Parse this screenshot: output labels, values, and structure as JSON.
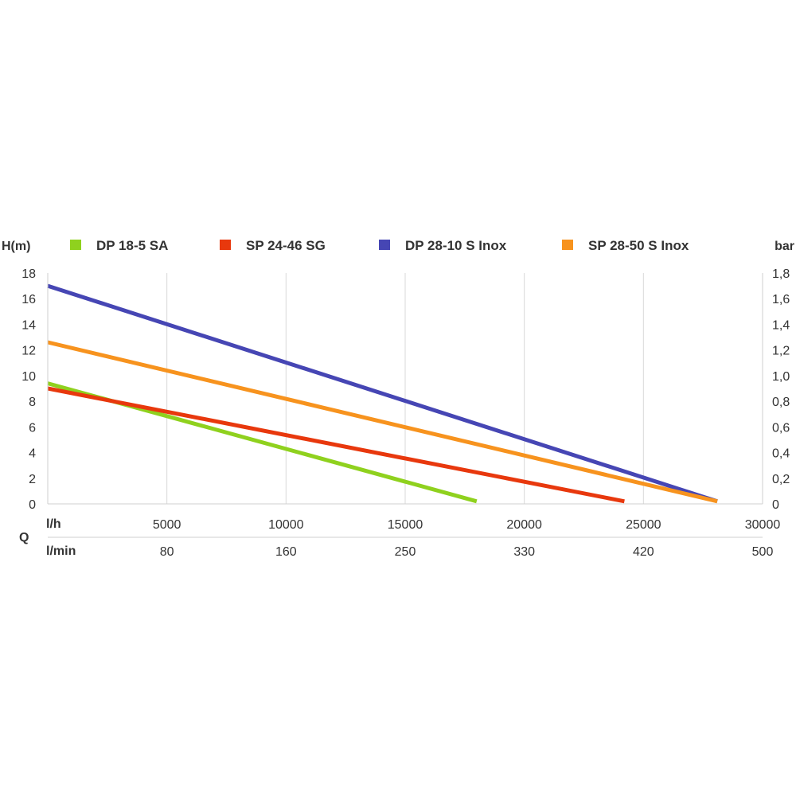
{
  "chart_data": {
    "type": "line",
    "ylabel_left": "H(m)",
    "ylabel_right": "bar",
    "row_label_q": "Q",
    "row_label_lh": "l/h",
    "row_label_lmin": "l/min",
    "x_ticks_lh": [
      "5000",
      "10000",
      "15000",
      "20000",
      "25000",
      "30000"
    ],
    "x_ticks_lmin": [
      "80",
      "160",
      "250",
      "330",
      "420",
      "500"
    ],
    "x_tick_values": [
      5000,
      10000,
      15000,
      20000,
      25000,
      30000
    ],
    "xlim": [
      0,
      30000
    ],
    "ylim": [
      0,
      18
    ],
    "y_ticks_left": [
      "0",
      "2",
      "4",
      "6",
      "8",
      "10",
      "12",
      "14",
      "16",
      "18"
    ],
    "y_ticks_right": [
      "0",
      "0,2",
      "0,4",
      "0,6",
      "0,8",
      "1,0",
      "1,2",
      "1,4",
      "1,6",
      "1,8"
    ],
    "y_tick_values": [
      0,
      2,
      4,
      6,
      8,
      10,
      12,
      14,
      16,
      18
    ],
    "grid": "vertical",
    "legend_position": "top",
    "series": [
      {
        "name": "DP 18-5 SA",
        "color": "#8fd11e",
        "x": [
          0,
          18000
        ],
        "y": [
          9.4,
          0.2
        ]
      },
      {
        "name": "SP 24-46 SG",
        "color": "#e8380d",
        "x": [
          0,
          24200
        ],
        "y": [
          9.0,
          0.2
        ]
      },
      {
        "name": "DP 28-10 S Inox",
        "color": "#4646b4",
        "x": [
          0,
          28100
        ],
        "y": [
          17.0,
          0.2
        ]
      },
      {
        "name": "SP 28-50 S Inox",
        "color": "#f7931e",
        "x": [
          0,
          28100
        ],
        "y": [
          12.6,
          0.2
        ]
      }
    ]
  }
}
